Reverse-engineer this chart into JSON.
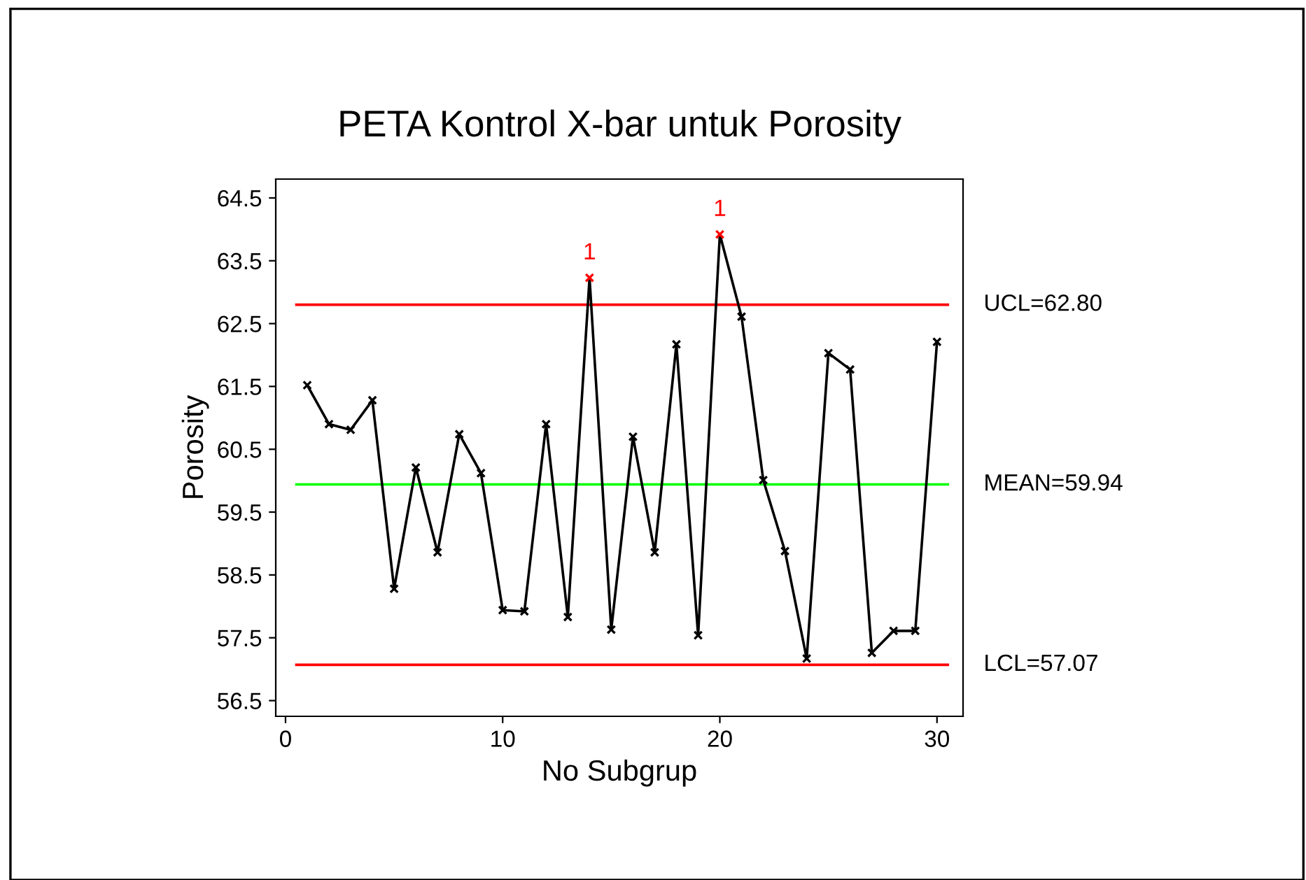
{
  "chart_data": {
    "type": "line",
    "title": "PETA Kontrol X-bar untuk Porosity",
    "xlabel": "No Subgrup",
    "ylabel": "Porosity",
    "x": [
      1,
      2,
      3,
      4,
      5,
      6,
      7,
      8,
      9,
      10,
      11,
      12,
      13,
      14,
      15,
      16,
      17,
      18,
      19,
      20,
      21,
      22,
      23,
      24,
      25,
      26,
      27,
      28,
      29,
      30
    ],
    "series": [
      {
        "color": "#000000",
        "colors": [
          "#000000",
          "#000000",
          "#000000",
          "#000000",
          "#000000",
          "#000000",
          "#000000",
          "#000000",
          "#000000",
          "#000000",
          "#000000",
          "#000000",
          "#000000",
          "#ff0000",
          "#000000",
          "#000000",
          "#000000",
          "#000000",
          "#000000",
          "#ff0000",
          "#000000",
          "#000000",
          "#000000",
          "#000000",
          "#000000",
          "#000000",
          "#000000",
          "#000000",
          "#000000",
          "#000000"
        ],
        "values": [
          61.52,
          60.9,
          60.81,
          61.28,
          58.28,
          60.21,
          58.86,
          60.74,
          60.12,
          57.94,
          57.92,
          60.9,
          57.83,
          63.23,
          57.63,
          60.7,
          58.86,
          62.17,
          57.54,
          63.92,
          62.61,
          60.01,
          58.88,
          57.17,
          62.03,
          61.77,
          57.26,
          57.61,
          57.61,
          62.21
        ]
      }
    ],
    "marker": "cross",
    "xlim": [
      -0.45,
      31.2
    ],
    "ylim": [
      56.25,
      64.8
    ],
    "xticks": [
      0,
      10,
      20,
      30
    ],
    "yticks": [
      56.5,
      57.5,
      58.5,
      59.5,
      60.5,
      61.5,
      62.5,
      63.5,
      64.5
    ],
    "ref_lines": [
      {
        "axis": "y",
        "value": 62.8,
        "label": "UCL=62.80",
        "color": "#ff0000"
      },
      {
        "axis": "y",
        "value": 59.94,
        "label": "MEAN=59.94",
        "color": "#00ff00"
      },
      {
        "axis": "y",
        "value": 57.07,
        "label": "LCL=57.07",
        "color": "#ff0000"
      }
    ],
    "annotations": [
      {
        "text": "1",
        "x": 14,
        "y": 63.23
      },
      {
        "text": "1",
        "x": 20,
        "y": 63.92
      }
    ],
    "grid": false,
    "legend": false
  }
}
